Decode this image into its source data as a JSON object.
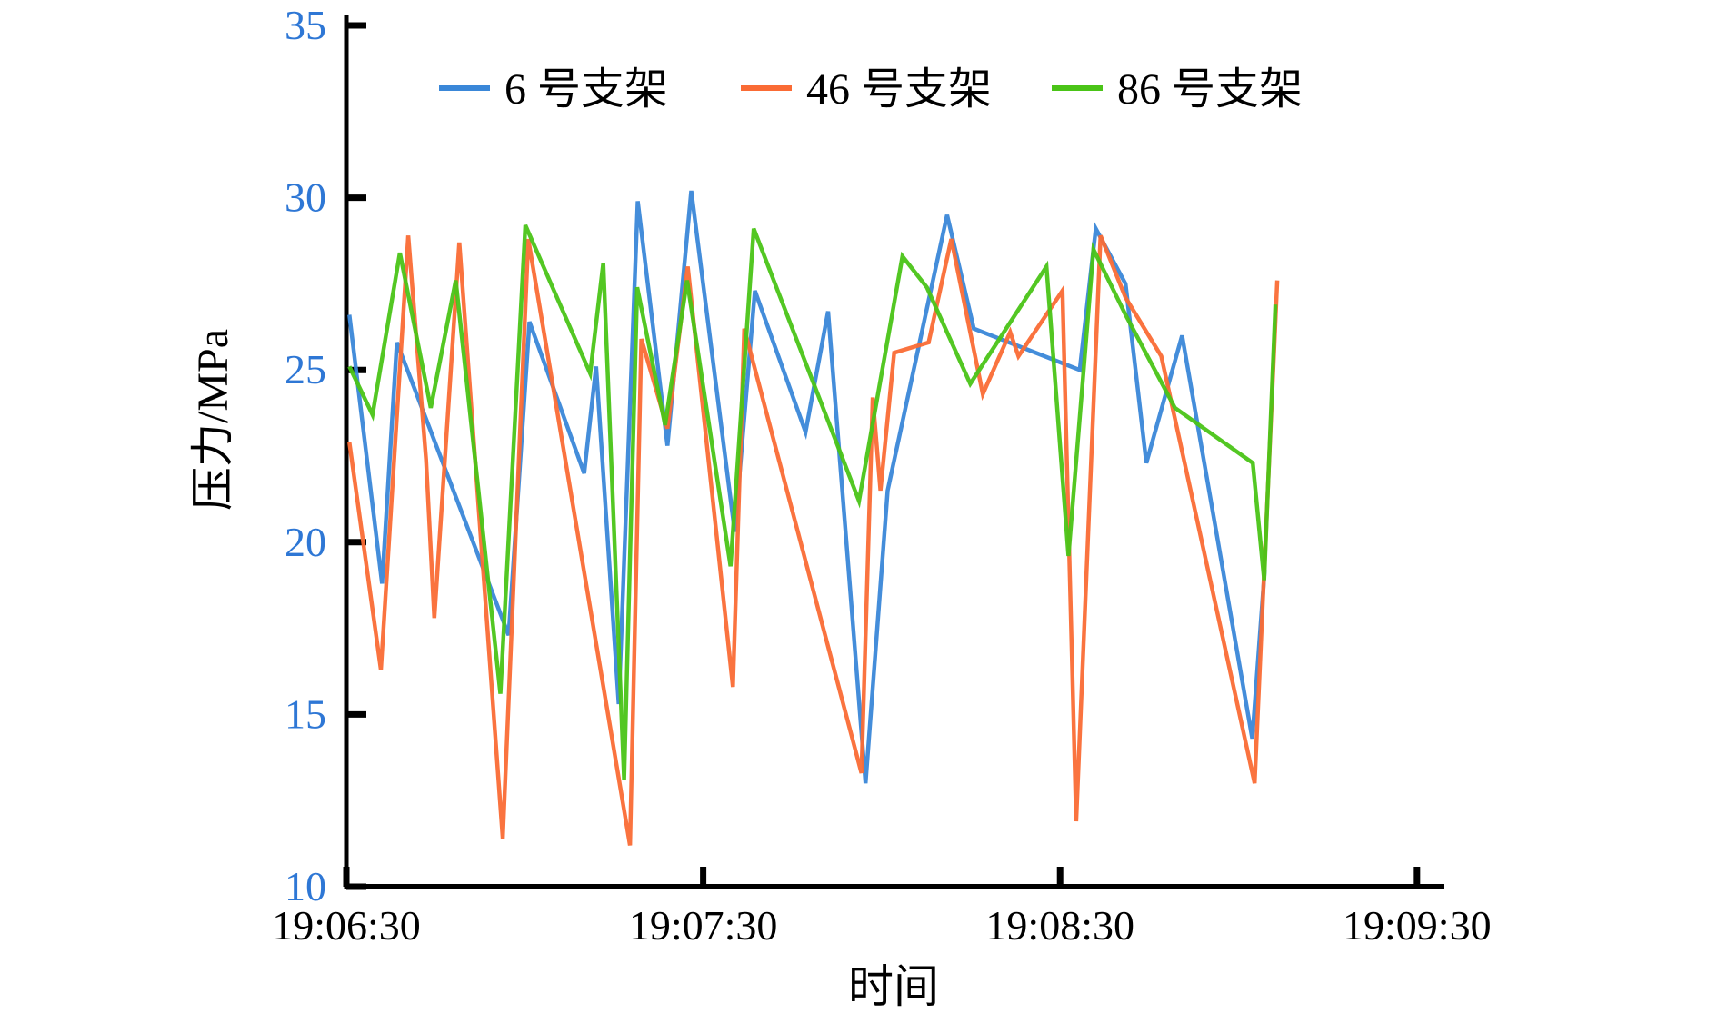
{
  "figure": {
    "background_color": "#ffffff",
    "axis_color": "#000000",
    "x_tick_label_color": "#000000",
    "y_tick_label_color": "#2E77D5",
    "y_axis_title_color": "#2E77D5",
    "x_axis_title_color": "#000000"
  },
  "chart_data": {
    "type": "line",
    "title": "",
    "xlabel": "时间",
    "ylabel": "压力/MPa",
    "x_unit": "seconds after 19:06:30",
    "x_domain": [
      0,
      184
    ],
    "y_domain": [
      10,
      35
    ],
    "grid": false,
    "legend_position": "top-inside",
    "y_ticks": [
      10,
      15,
      20,
      25,
      30,
      35
    ],
    "x_ticks": [
      {
        "t": 0,
        "label": "19:06:30"
      },
      {
        "t": 60,
        "label": "19:07:30"
      },
      {
        "t": 120,
        "label": "19:08:30"
      },
      {
        "t": 180,
        "label": "19:09:30"
      }
    ],
    "series": [
      {
        "name": "6 号支架",
        "color": "#3A87D8",
        "points": [
          [
            0.5,
            26.6
          ],
          [
            6,
            18.8
          ],
          [
            8.5,
            25.8
          ],
          [
            27.3,
            17.3
          ],
          [
            30.8,
            26.4
          ],
          [
            40,
            22.0
          ],
          [
            42,
            25.1
          ],
          [
            45.8,
            15.3
          ],
          [
            49,
            29.9
          ],
          [
            54,
            22.8
          ],
          [
            58,
            30.2
          ],
          [
            65.3,
            20.3
          ],
          [
            68.7,
            27.3
          ],
          [
            77.2,
            23.2
          ],
          [
            81,
            26.7
          ],
          [
            87.3,
            13.0
          ],
          [
            91,
            21.5
          ],
          [
            101,
            29.5
          ],
          [
            105.5,
            26.2
          ],
          [
            123.3,
            25.0
          ],
          [
            126,
            29.1
          ],
          [
            131,
            27.5
          ],
          [
            134.5,
            22.3
          ],
          [
            140.5,
            26.0
          ],
          [
            152.3,
            14.3
          ],
          [
            154.4,
            19.2
          ]
        ]
      },
      {
        "name": "46 号支架",
        "color": "#FA6B35",
        "points": [
          [
            0.5,
            22.9
          ],
          [
            5.8,
            16.3
          ],
          [
            10.4,
            28.9
          ],
          [
            13.4,
            22.4
          ],
          [
            14.8,
            17.8
          ],
          [
            19,
            28.7
          ],
          [
            26.3,
            11.4
          ],
          [
            30.6,
            28.8
          ],
          [
            47.7,
            11.2
          ],
          [
            49.6,
            25.9
          ],
          [
            54,
            23.3
          ],
          [
            57.4,
            28.0
          ],
          [
            65,
            15.8
          ],
          [
            66.9,
            26.2
          ],
          [
            86.6,
            13.3
          ],
          [
            88.5,
            24.2
          ],
          [
            89.8,
            21.5
          ],
          [
            92.1,
            25.5
          ],
          [
            97.9,
            25.8
          ],
          [
            101.7,
            28.8
          ],
          [
            107,
            24.3
          ],
          [
            111.6,
            26.1
          ],
          [
            113,
            25.4
          ],
          [
            120.4,
            27.3
          ],
          [
            122.7,
            11.9
          ],
          [
            126.8,
            28.9
          ],
          [
            131,
            27.1
          ],
          [
            137,
            25.4
          ],
          [
            152.7,
            13.0
          ],
          [
            156.5,
            27.6
          ]
        ]
      },
      {
        "name": "86 号支架",
        "color": "#4AC417",
        "points": [
          [
            0.5,
            25.1
          ],
          [
            4.4,
            23.7
          ],
          [
            9,
            28.4
          ],
          [
            14.2,
            23.9
          ],
          [
            18.4,
            27.6
          ],
          [
            25.9,
            15.6
          ],
          [
            30.1,
            29.2
          ],
          [
            41,
            24.9
          ],
          [
            43.2,
            28.1
          ],
          [
            46.7,
            13.1
          ],
          [
            48.9,
            27.4
          ],
          [
            53.6,
            23.4
          ],
          [
            57.3,
            27.6
          ],
          [
            64.6,
            19.3
          ],
          [
            68.5,
            29.1
          ],
          [
            86.2,
            21.2
          ],
          [
            93.5,
            28.3
          ],
          [
            97.6,
            27.4
          ],
          [
            104.9,
            24.6
          ],
          [
            117.7,
            28.0
          ],
          [
            121.4,
            19.6
          ],
          [
            125.6,
            28.5
          ],
          [
            131,
            26.6
          ],
          [
            139.3,
            23.9
          ],
          [
            152.4,
            22.3
          ],
          [
            154.3,
            18.9
          ],
          [
            156.2,
            26.9
          ]
        ]
      }
    ]
  }
}
